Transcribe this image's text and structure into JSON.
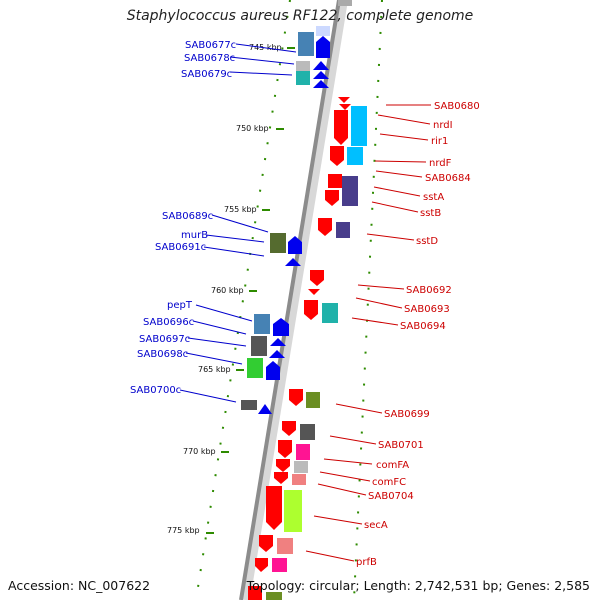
{
  "title": "Staphylococcus aureus RF122, complete genome",
  "footer": {
    "accession": "Accession: NC_007622",
    "summary": "Topology: circular; Length: 2,742,531 bp; Genes: 2,585"
  },
  "colors": {
    "reverse_label": "#0000cc",
    "forward_label": "#cc0000",
    "tick": "#2e8b00",
    "backbone": "#8c8c8c"
  },
  "kbp_labels": [
    "745 kbp",
    "750 kbp",
    "755 kbp",
    "760 kbp",
    "765 kbp",
    "770 kbp",
    "775 kbp"
  ],
  "reverse_genes": [
    "SAB0677c",
    "SAB0678c",
    "SAB0679c",
    "SAB0689c",
    "murB",
    "SAB0691c",
    "pepT",
    "SAB0696c",
    "SAB0697c",
    "SAB0698c",
    "SAB0700c"
  ],
  "forward_genes": [
    "SAB0680",
    "nrdI",
    "rir1",
    "nrdF",
    "SAB0684",
    "sstA",
    "sstB",
    "sstD",
    "SAB0692",
    "SAB0693",
    "SAB0694",
    "SAB0699",
    "SAB0701",
    "comFA",
    "comFC",
    "SAB0704",
    "secA",
    "prfB"
  ]
}
